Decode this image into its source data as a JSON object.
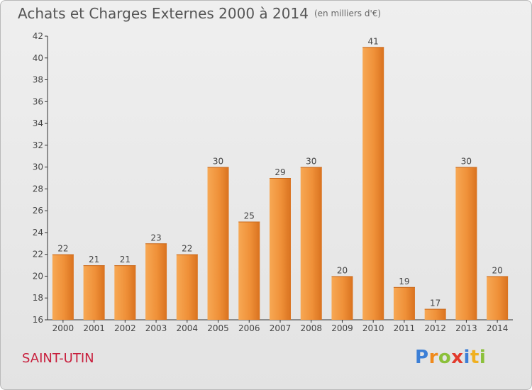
{
  "title": "Achats et Charges Externes 2000 à 2014",
  "subtitle": "(en milliers d'€)",
  "commune": "SAINT-UTIN",
  "logo": {
    "text": "Proxiti"
  },
  "colors": {
    "bar_light": "#f7a854",
    "bar_dark": "#d9721f",
    "commune": "#c81e3c"
  },
  "chart_data": {
    "type": "bar",
    "title": "Achats et Charges Externes 2000 à 2014",
    "subtitle": "(en milliers d'€)",
    "categories": [
      "2000",
      "2001",
      "2002",
      "2003",
      "2004",
      "2005",
      "2006",
      "2007",
      "2008",
      "2009",
      "2010",
      "2011",
      "2012",
      "2013",
      "2014"
    ],
    "values": [
      22,
      21,
      21,
      23,
      22,
      30,
      25,
      29,
      30,
      20,
      41,
      19,
      17,
      30,
      20
    ],
    "ylim": [
      16,
      42
    ],
    "yticks": [
      16,
      18,
      20,
      22,
      24,
      26,
      28,
      30,
      32,
      34,
      36,
      38,
      40,
      42
    ],
    "grid": false,
    "legend": "none"
  }
}
